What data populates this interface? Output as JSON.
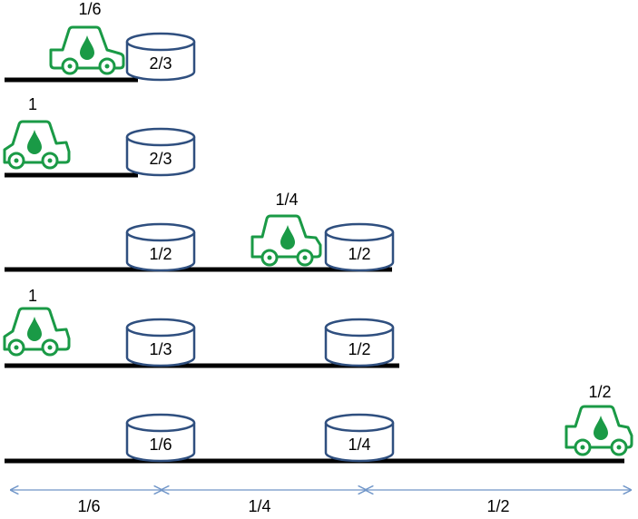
{
  "colors": {
    "car": "#1a9a46",
    "depot": "#2f4f7f",
    "road": "#000000",
    "arrow": "#6f95c8"
  },
  "rows": [
    {
      "car_label": "1/6",
      "depots": [
        {
          "label": "2/3"
        }
      ]
    },
    {
      "car_label": "1",
      "depots": [
        {
          "label": "2/3"
        }
      ]
    },
    {
      "car_label": "1/4",
      "depots": [
        {
          "label": "1/2"
        },
        {
          "label": "1/2"
        }
      ]
    },
    {
      "car_label": "1",
      "depots": [
        {
          "label": "1/3"
        },
        {
          "label": "1/2"
        }
      ]
    },
    {
      "car_label": "1/2",
      "depots": [
        {
          "label": "1/6"
        },
        {
          "label": "1/4"
        }
      ]
    }
  ],
  "segments": [
    {
      "label": "1/6"
    },
    {
      "label": "1/4"
    },
    {
      "label": "1/2"
    }
  ]
}
